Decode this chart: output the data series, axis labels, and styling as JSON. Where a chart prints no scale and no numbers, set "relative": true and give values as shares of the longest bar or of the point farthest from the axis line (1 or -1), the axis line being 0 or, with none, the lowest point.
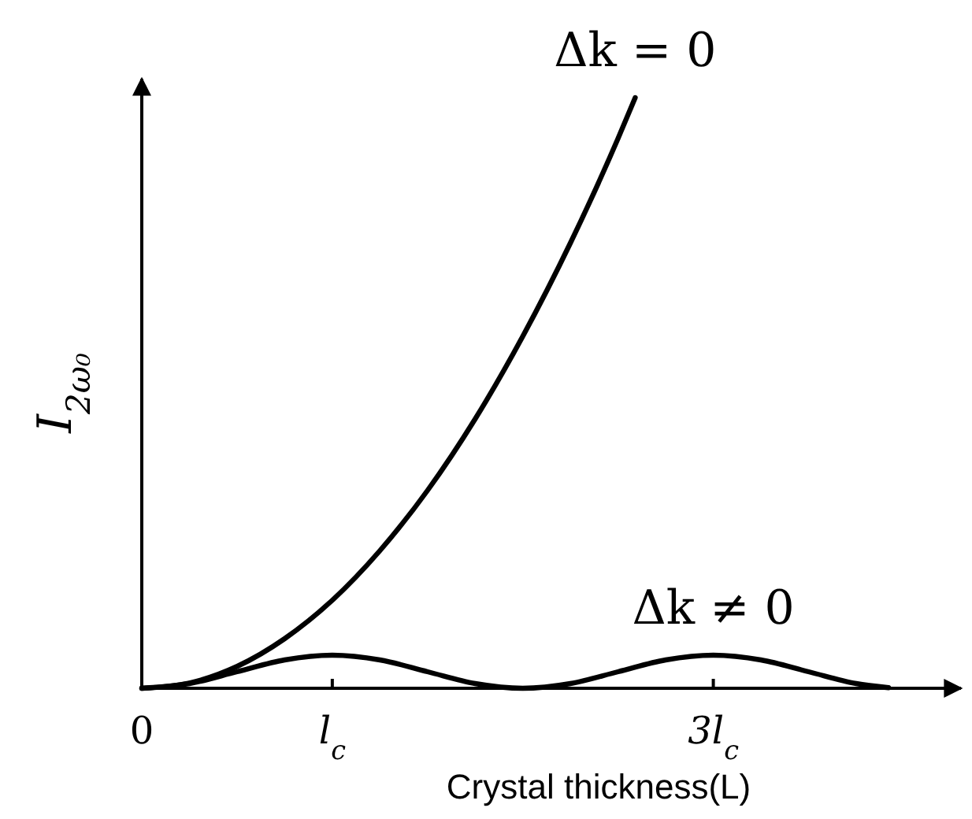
{
  "chart_data": {
    "type": "line",
    "relative": true,
    "xlabel": "Crystal thickness(L)",
    "ylabel": "I$_{2ω₀}$",
    "xlim": [
      0,
      4.3
    ],
    "xticks": [
      0,
      {
        "value": 1,
        "label": "l$_{c}$"
      },
      {
        "value": 3,
        "label": "3l$_{c}$"
      }
    ],
    "grid": false,
    "marker": "none",
    "line_style": "solid",
    "series": [
      {
        "name": "Δk = 0",
        "color": "#000000",
        "x": [
          0,
          0.25,
          0.5,
          0.75,
          1,
          1.25,
          1.5,
          1.75,
          2,
          2.25,
          2.5,
          2.59
        ],
        "values": [
          0,
          0.009,
          0.037,
          0.084,
          0.149,
          0.233,
          0.335,
          0.456,
          0.596,
          0.754,
          0.931,
          1
        ]
      },
      {
        "name": "Δk ≠ 0",
        "color": "#000000",
        "x": [
          0,
          0.25,
          0.5,
          0.75,
          1,
          1.25,
          1.5,
          1.75,
          2,
          2.25,
          2.5,
          2.75,
          3,
          3.25,
          3.5,
          3.75,
          3.92
        ],
        "values": [
          0,
          0.008,
          0.028,
          0.048,
          0.056,
          0.048,
          0.028,
          0.008,
          0,
          0.008,
          0.028,
          0.048,
          0.056,
          0.048,
          0.028,
          0.008,
          0.001
        ]
      }
    ]
  }
}
